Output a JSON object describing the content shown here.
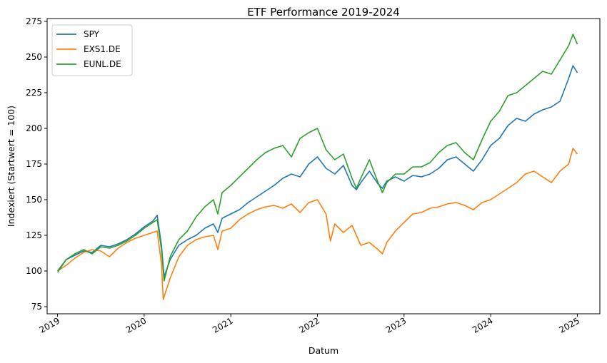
{
  "chart_data": {
    "type": "line",
    "title": "ETF Performance 2019-2024",
    "xlabel": "Datum",
    "ylabel": "Indexiert (Startwert = 100)",
    "xlim": [
      2018.88,
      2025.26
    ],
    "ylim": [
      70,
      277
    ],
    "x_ticks": [
      2019,
      2020,
      2021,
      2022,
      2023,
      2024,
      2025
    ],
    "x_tick_labels": [
      "2019",
      "2020",
      "2021",
      "2022",
      "2023",
      "2024",
      "2025"
    ],
    "y_ticks": [
      75,
      100,
      125,
      150,
      175,
      200,
      225,
      250,
      275
    ],
    "y_tick_labels": [
      "75",
      "100",
      "125",
      "150",
      "175",
      "200",
      "225",
      "250",
      "275"
    ],
    "legend_position": "top-left",
    "series": [
      {
        "name": "SPY",
        "color": "#1f77b4",
        "x": [
          2019.0,
          2019.1,
          2019.2,
          2019.3,
          2019.4,
          2019.5,
          2019.6,
          2019.7,
          2019.8,
          2019.9,
          2020.0,
          2020.1,
          2020.15,
          2020.2,
          2020.23,
          2020.3,
          2020.4,
          2020.5,
          2020.6,
          2020.7,
          2020.8,
          2020.85,
          2020.9,
          2021.0,
          2021.1,
          2021.2,
          2021.3,
          2021.4,
          2021.5,
          2021.6,
          2021.7,
          2021.8,
          2021.9,
          2022.0,
          2022.1,
          2022.2,
          2022.3,
          2022.4,
          2022.45,
          2022.5,
          2022.6,
          2022.7,
          2022.75,
          2022.8,
          2022.9,
          2023.0,
          2023.1,
          2023.2,
          2023.3,
          2023.4,
          2023.5,
          2023.6,
          2023.7,
          2023.8,
          2023.9,
          2024.0,
          2024.1,
          2024.2,
          2024.3,
          2024.4,
          2024.5,
          2024.6,
          2024.7,
          2024.8,
          2024.9,
          2024.95,
          2025.0
        ],
        "values": [
          100,
          108,
          111,
          114,
          113,
          118,
          117,
          119,
          122,
          126,
          131,
          135,
          139,
          118,
          96,
          108,
          118,
          122,
          125,
          130,
          133,
          127,
          137,
          140,
          143,
          148,
          152,
          156,
          160,
          165,
          168,
          166,
          175,
          180,
          172,
          168,
          174,
          160,
          157,
          162,
          170,
          161,
          158,
          163,
          166,
          163,
          167,
          166,
          168,
          172,
          178,
          180,
          175,
          170,
          178,
          188,
          193,
          202,
          207,
          205,
          210,
          213,
          215,
          219,
          235,
          244,
          239
        ]
      },
      {
        "name": "EXS1.DE",
        "color": "#ff7f0e",
        "x": [
          2019.0,
          2019.1,
          2019.2,
          2019.3,
          2019.4,
          2019.5,
          2019.6,
          2019.7,
          2019.8,
          2019.9,
          2020.0,
          2020.1,
          2020.15,
          2020.2,
          2020.22,
          2020.3,
          2020.4,
          2020.5,
          2020.6,
          2020.7,
          2020.8,
          2020.85,
          2020.9,
          2021.0,
          2021.1,
          2021.2,
          2021.3,
          2021.4,
          2021.5,
          2021.6,
          2021.7,
          2021.8,
          2021.9,
          2022.0,
          2022.1,
          2022.15,
          2022.2,
          2022.3,
          2022.4,
          2022.5,
          2022.6,
          2022.7,
          2022.75,
          2022.8,
          2022.9,
          2023.0,
          2023.1,
          2023.2,
          2023.3,
          2023.4,
          2023.5,
          2023.6,
          2023.7,
          2023.8,
          2023.9,
          2024.0,
          2024.1,
          2024.2,
          2024.3,
          2024.4,
          2024.5,
          2024.6,
          2024.7,
          2024.8,
          2024.9,
          2024.95,
          2025.0
        ],
        "values": [
          100,
          104,
          109,
          113,
          115,
          114,
          110,
          116,
          120,
          123,
          125,
          127,
          128,
          105,
          80,
          95,
          110,
          118,
          122,
          124,
          125,
          115,
          128,
          130,
          136,
          140,
          143,
          145,
          146,
          144,
          147,
          141,
          148,
          150,
          140,
          121,
          133,
          127,
          132,
          118,
          120,
          115,
          112,
          120,
          128,
          134,
          140,
          141,
          144,
          145,
          147,
          148,
          146,
          143,
          148,
          150,
          154,
          158,
          162,
          168,
          170,
          166,
          162,
          170,
          175,
          186,
          182
        ]
      },
      {
        "name": "EUNL.DE",
        "color": "#2ca02c",
        "x": [
          2019.0,
          2019.1,
          2019.2,
          2019.3,
          2019.4,
          2019.5,
          2019.6,
          2019.7,
          2019.8,
          2019.9,
          2020.0,
          2020.1,
          2020.15,
          2020.2,
          2020.23,
          2020.3,
          2020.4,
          2020.5,
          2020.6,
          2020.7,
          2020.8,
          2020.85,
          2020.9,
          2021.0,
          2021.1,
          2021.2,
          2021.3,
          2021.4,
          2021.5,
          2021.6,
          2021.7,
          2021.8,
          2021.9,
          2022.0,
          2022.1,
          2022.2,
          2022.3,
          2022.4,
          2022.45,
          2022.5,
          2022.6,
          2022.7,
          2022.75,
          2022.8,
          2022.9,
          2023.0,
          2023.1,
          2023.2,
          2023.3,
          2023.4,
          2023.5,
          2023.6,
          2023.7,
          2023.8,
          2023.9,
          2024.0,
          2024.1,
          2024.2,
          2024.3,
          2024.4,
          2024.5,
          2024.6,
          2024.7,
          2024.8,
          2024.9,
          2024.95,
          2025.0
        ],
        "values": [
          99,
          108,
          112,
          115,
          112,
          117,
          116,
          118,
          121,
          125,
          130,
          134,
          136,
          115,
          93,
          110,
          122,
          128,
          138,
          145,
          150,
          140,
          155,
          160,
          166,
          172,
          178,
          183,
          186,
          188,
          180,
          193,
          197,
          200,
          185,
          178,
          182,
          165,
          158,
          165,
          178,
          162,
          155,
          162,
          168,
          168,
          173,
          173,
          176,
          183,
          188,
          190,
          183,
          178,
          192,
          205,
          212,
          223,
          225,
          230,
          235,
          240,
          238,
          248,
          258,
          266,
          259
        ]
      }
    ]
  }
}
